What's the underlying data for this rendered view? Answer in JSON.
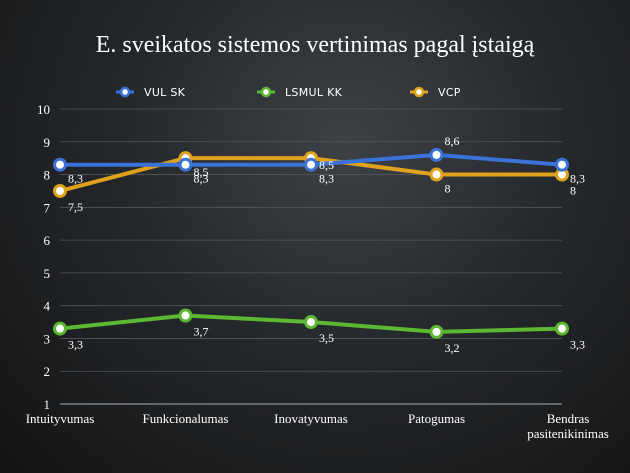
{
  "chart_data": {
    "type": "line",
    "title": "E. sveikatos sistemos vertinimas pagal įstaigą",
    "xlabel": "",
    "ylabel": "",
    "ylim": [
      1,
      10
    ],
    "yticks": [
      "1",
      "2",
      "3",
      "4",
      "5",
      "6",
      "7",
      "8",
      "9",
      "10"
    ],
    "grid": true,
    "legend_position": "top",
    "categories": [
      [
        "Intuityvumas"
      ],
      [
        "Funkcionalumas"
      ],
      [
        "Inovatyvumas"
      ],
      [
        "Patogumas"
      ],
      [
        "Bendras",
        "pasitenikinimas"
      ]
    ],
    "series": [
      {
        "name": "VUL SK",
        "color": "#3a72d8",
        "values": [
          8.3,
          8.3,
          8.3,
          8.6,
          8.3
        ],
        "labels": [
          "8,3",
          "8,3",
          "8,3",
          "8,6",
          "8,3"
        ]
      },
      {
        "name": "LSMUL KK",
        "color": "#5cb832",
        "values": [
          3.3,
          3.7,
          3.5,
          3.2,
          3.3
        ],
        "labels": [
          "3,3",
          "3,7",
          "3,5",
          "3,2",
          "3,3"
        ]
      },
      {
        "name": "VCP",
        "color": "#e0a21c",
        "values": [
          7.5,
          8.5,
          8.5,
          8.0,
          8.0
        ],
        "labels": [
          "7,5",
          "8,5",
          "8,5",
          "8",
          "8"
        ]
      }
    ]
  }
}
